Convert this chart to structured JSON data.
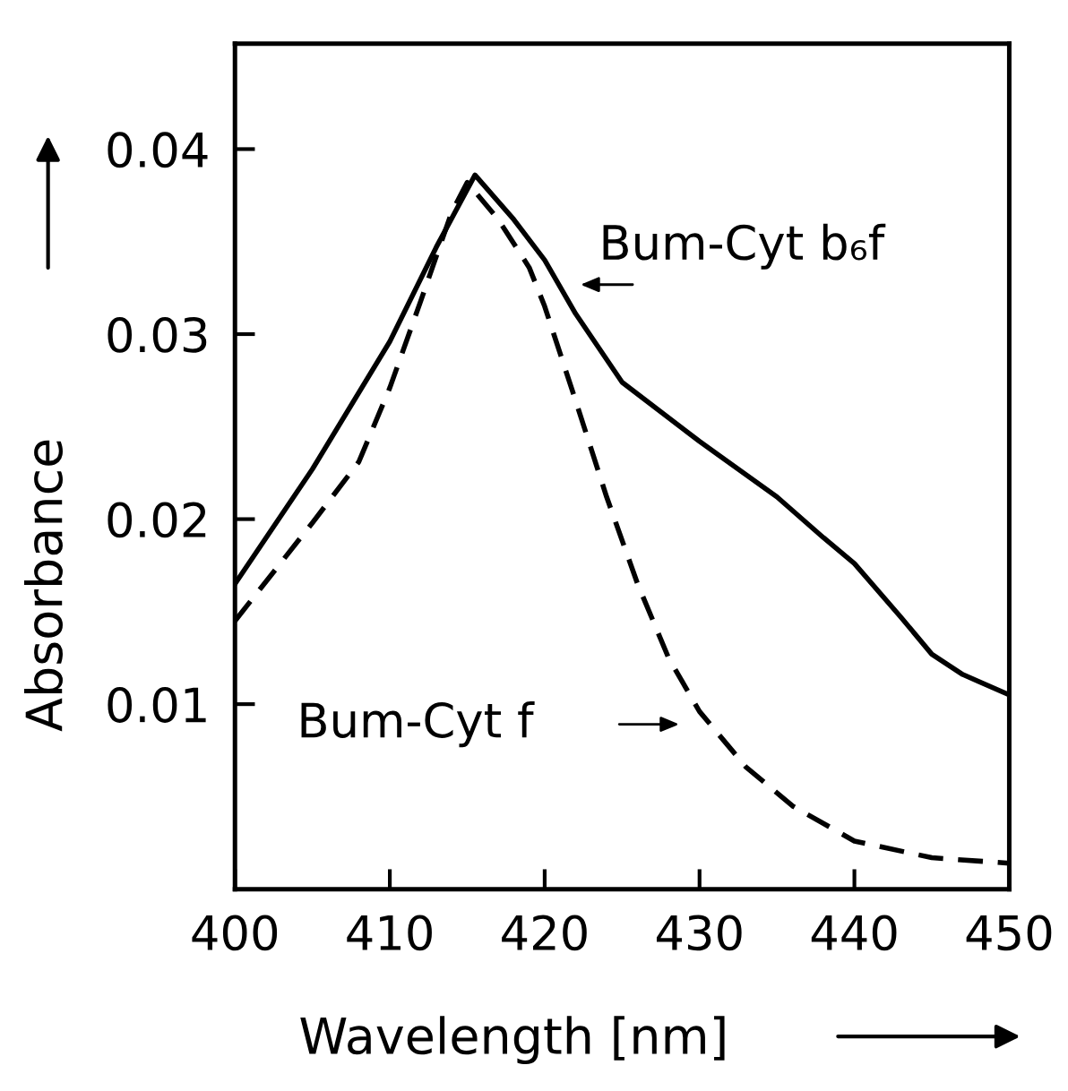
{
  "chart_data": {
    "type": "line",
    "xlabel": "Wavelength [nm]",
    "ylabel": "Absorbance",
    "xlim": [
      400,
      450
    ],
    "xticks": [
      400,
      410,
      420,
      430,
      440,
      450
    ],
    "ylim": [
      0,
      0.0457
    ],
    "yticks": [
      0.01,
      0.02,
      0.03,
      0.04
    ],
    "grid": false,
    "legend": false,
    "marker": "none",
    "series": [
      {
        "color": "#000000",
        "line_style": "solid",
        "x": [
          400,
          405,
          410,
          413,
          415.5,
          418,
          420,
          422,
          425,
          430,
          435,
          438,
          440,
          443,
          445,
          447,
          450
        ],
        "values": [
          0.0165,
          0.0227,
          0.0296,
          0.0347,
          0.0386,
          0.0362,
          0.034,
          0.0311,
          0.0274,
          0.0242,
          0.0212,
          0.019,
          0.0176,
          0.0147,
          0.0127,
          0.0116,
          0.0105
        ]
      },
      {
        "color": "#000000",
        "line_style": "dashed",
        "x": [
          400,
          405,
          408,
          410,
          412,
          414,
          415,
          417,
          419,
          420,
          422,
          424,
          426,
          428,
          430,
          433,
          436,
          440,
          445,
          450
        ],
        "values": [
          0.0145,
          0.0198,
          0.0231,
          0.0271,
          0.0318,
          0.0366,
          0.0382,
          0.0362,
          0.0336,
          0.0315,
          0.0264,
          0.0212,
          0.0165,
          0.0125,
          0.0096,
          0.0066,
          0.0045,
          0.0026,
          0.0017,
          0.0014
        ]
      }
    ],
    "annotations": [
      "Bum-Cyt b₆f",
      "Bum-Cyt f"
    ]
  }
}
